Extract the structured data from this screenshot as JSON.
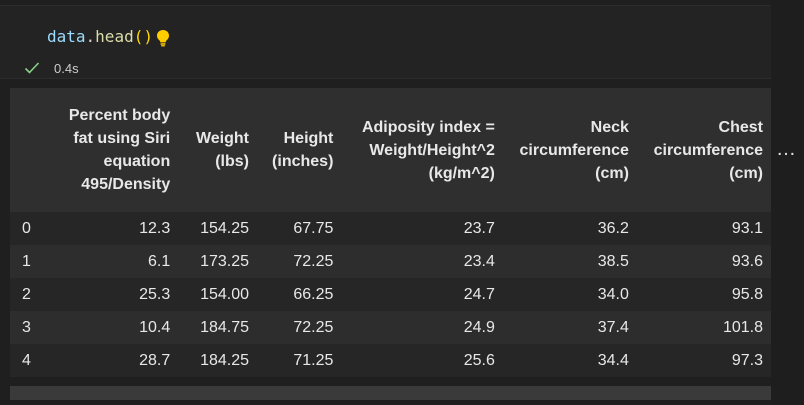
{
  "cell": {
    "code": {
      "var": "data",
      "dot": ".",
      "fn": "head",
      "parens": "()"
    },
    "status": {
      "time": "0.4s"
    }
  },
  "table": {
    "columns": [
      "",
      "Percent body fat using Siri equation 495/Density",
      "Weight (lbs)",
      "Height (inches)",
      "Adiposity index = Weight/Height^2 (kg/m^2)",
      "Neck circumference (cm)",
      "Chest circumference (cm)"
    ],
    "rows": [
      [
        "0",
        "12.3",
        "154.25",
        "67.75",
        "23.7",
        "36.2",
        "93.1"
      ],
      [
        "1",
        "6.1",
        "173.25",
        "72.25",
        "23.4",
        "38.5",
        "93.6"
      ],
      [
        "2",
        "25.3",
        "154.00",
        "66.25",
        "24.7",
        "34.0",
        "95.8"
      ],
      [
        "3",
        "10.4",
        "184.75",
        "72.25",
        "24.9",
        "37.4",
        "101.8"
      ],
      [
        "4",
        "28.7",
        "184.25",
        "71.25",
        "25.6",
        "34.4",
        "97.3"
      ]
    ],
    "more_columns": "…"
  },
  "colors": {
    "accent_check": "#89d185",
    "bulb": "#ffcc00"
  }
}
